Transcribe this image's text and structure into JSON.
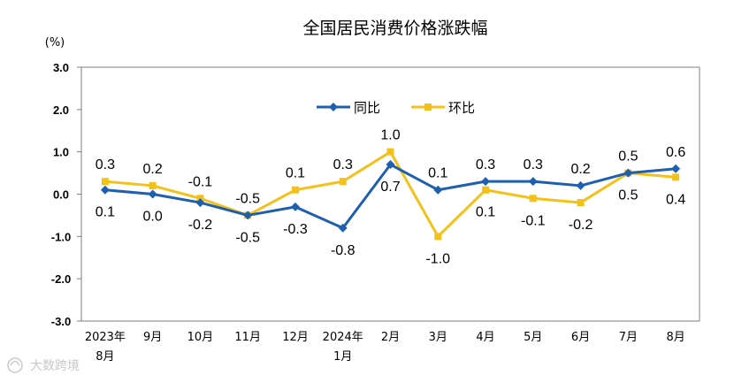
{
  "chart_data": {
    "type": "line",
    "title": "全国居民消费价格涨跌幅",
    "unit": "(%)",
    "categories": [
      "2023年8月",
      "9月",
      "10月",
      "11月",
      "12月",
      "2024年1月",
      "2月",
      "3月",
      "4月",
      "5月",
      "6月",
      "7月",
      "8月"
    ],
    "category_lines": [
      [
        "2023年",
        "8月"
      ],
      [
        "9月"
      ],
      [
        "10月"
      ],
      [
        "11月"
      ],
      [
        "12月"
      ],
      [
        "2024年",
        "1月"
      ],
      [
        "2月"
      ],
      [
        "3月"
      ],
      [
        "4月"
      ],
      [
        "5月"
      ],
      [
        "6月"
      ],
      [
        "7月"
      ],
      [
        "8月"
      ]
    ],
    "ylim": [
      -3.0,
      3.0
    ],
    "yticks": [
      3.0,
      2.0,
      1.0,
      0.0,
      -1.0,
      -2.0,
      -3.0
    ],
    "ytick_labels": [
      "3.0",
      "2.0",
      "1.0",
      "0.0",
      "-1.0",
      "-2.0",
      "-3.0"
    ],
    "grid": false,
    "legend_position": "top-center",
    "series": [
      {
        "name": "同比",
        "color": "#1f5fb0",
        "marker": "diamond",
        "values": [
          0.1,
          0.0,
          -0.2,
          -0.5,
          -0.3,
          -0.8,
          0.7,
          0.1,
          0.3,
          0.3,
          0.2,
          0.5,
          0.6
        ],
        "labels": [
          "0.1",
          "0.0",
          "-0.2",
          "-0.5",
          "-0.3",
          "-0.8",
          "0.7",
          "0.1",
          "0.3",
          "0.3",
          "0.2",
          "0.5",
          "0.6"
        ]
      },
      {
        "name": "环比",
        "color": "#f2c21a",
        "marker": "square",
        "values": [
          0.3,
          0.2,
          -0.1,
          -0.5,
          0.1,
          0.3,
          1.0,
          -1.0,
          0.1,
          -0.1,
          -0.2,
          0.5,
          0.4
        ],
        "labels": [
          "0.3",
          "0.2",
          "-0.1",
          "-0.5",
          "0.1",
          "0.3",
          "1.0",
          "-1.0",
          "0.1",
          "-0.1",
          "-0.2",
          "0.5",
          "0.4"
        ]
      }
    ],
    "watermark": "大数跨境"
  }
}
